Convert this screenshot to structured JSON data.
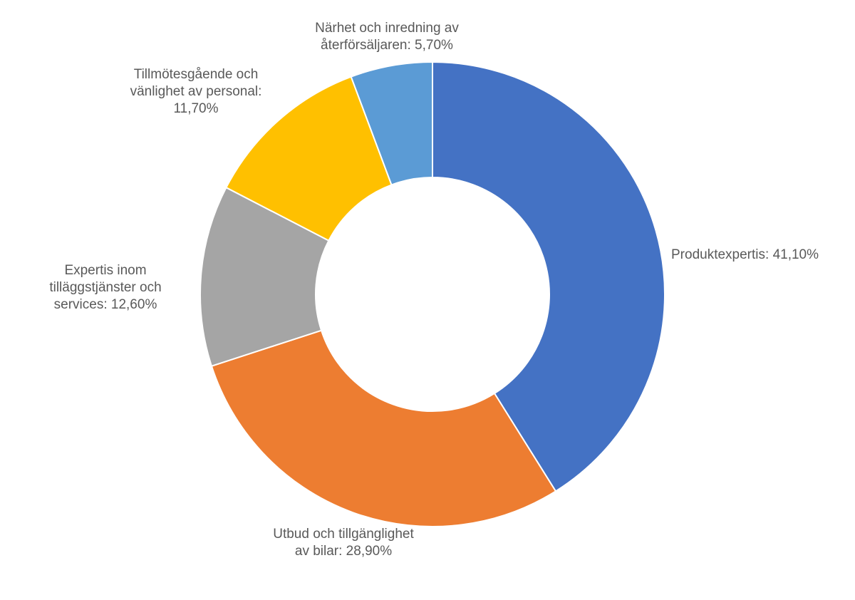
{
  "chart_data": {
    "type": "pie",
    "variant": "donut",
    "title": "",
    "legend": "none",
    "slices": [
      {
        "name": "Produktexpertis",
        "value": 41.1,
        "color": "#4472C4",
        "label_lines": [
          "Produktexpertis: 41,10%"
        ]
      },
      {
        "name": "Utbud och tillgänglighet av bilar",
        "value": 28.9,
        "color": "#ED7D31",
        "label_lines": [
          "Utbud och tillgänglighet",
          "av bilar: 28,90%"
        ]
      },
      {
        "name": "Expertis inom tilläggstjänster och services",
        "value": 12.6,
        "color": "#A5A5A5",
        "label_lines": [
          "Expertis inom",
          "tilläggstjänster och",
          "services: 12,60%"
        ]
      },
      {
        "name": "Tillmötesgående och vänlighet av personal",
        "value": 11.7,
        "color": "#FFC000",
        "label_lines": [
          "Tillmötesgående och",
          "vänlighet av personal:",
          "11,70%"
        ]
      },
      {
        "name": "Närhet och inredning av återförsäljaren",
        "value": 5.7,
        "color": "#5B9BD5",
        "label_lines": [
          "Närhet och inredning av",
          "återförsäljaren: 5,70%"
        ]
      }
    ]
  }
}
